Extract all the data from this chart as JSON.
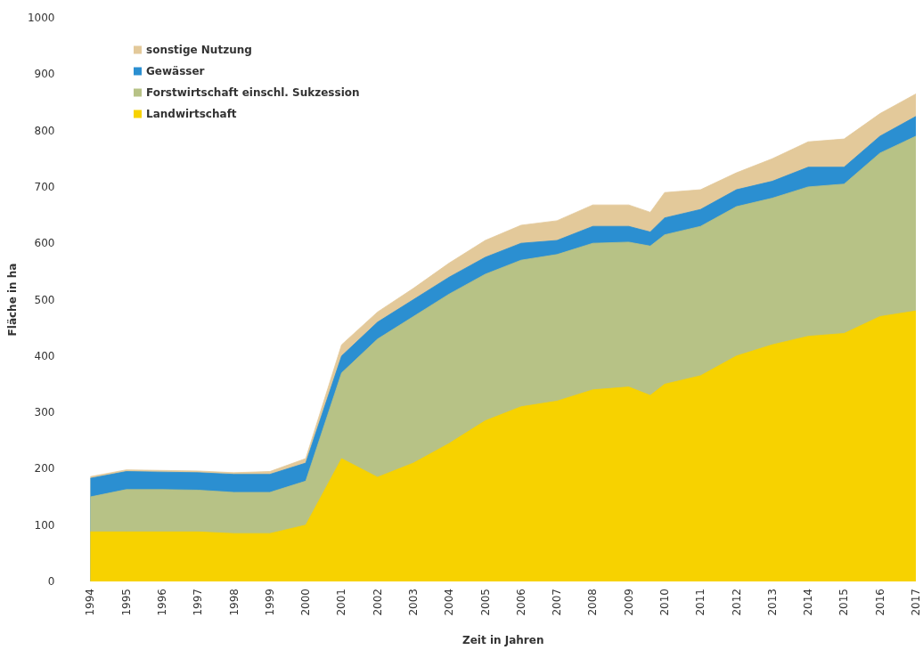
{
  "chart_data": {
    "type": "area",
    "stacked": true,
    "xlabel": "Zeit in Jahren",
    "ylabel": "Fläche in ha",
    "x": [
      1994,
      1995,
      1996,
      1997,
      1998,
      1999,
      2000,
      2001,
      2002,
      2003,
      2004,
      2005,
      2006,
      2007,
      2008,
      2009,
      2009.6,
      2010,
      2011,
      2012,
      2013,
      2014,
      2015,
      2016,
      2017
    ],
    "series": [
      {
        "name": "Landwirtschaft",
        "color": "#f7d200",
        "values": [
          88,
          88,
          88,
          88,
          85,
          85,
          100,
          218,
          185,
          210,
          245,
          285,
          310,
          320,
          340,
          345,
          330,
          350,
          365,
          400,
          420,
          435,
          440,
          470,
          480
        ]
      },
      {
        "name": "Forstwirtschaft einschl. Sukzession",
        "color": "#b7c286",
        "values": [
          62,
          75,
          75,
          74,
          73,
          73,
          78,
          152,
          245,
          260,
          265,
          260,
          260,
          260,
          260,
          257,
          265,
          265,
          265,
          265,
          260,
          265,
          265,
          290,
          310
        ]
      },
      {
        "name": "Gewässer",
        "color": "#2b8fd1",
        "values": [
          33,
          32,
          31,
          31,
          32,
          32,
          32,
          30,
          30,
          30,
          30,
          30,
          30,
          25,
          30,
          28,
          25,
          30,
          30,
          30,
          30,
          35,
          30,
          30,
          35
        ]
      },
      {
        "name": "sonstige Nutzung",
        "color": "#e3c99a",
        "values": [
          3,
          3,
          3,
          3,
          3,
          5,
          8,
          20,
          18,
          20,
          25,
          30,
          32,
          35,
          38,
          38,
          35,
          45,
          35,
          30,
          40,
          45,
          50,
          40,
          40
        ]
      }
    ],
    "xlim": [
      1994,
      2017
    ],
    "xticks": [
      1994,
      1995,
      1996,
      1997,
      1998,
      1999,
      2000,
      2001,
      2002,
      2003,
      2004,
      2005,
      2006,
      2007,
      2008,
      2009,
      2010,
      2011,
      2012,
      2013,
      2014,
      2015,
      2016,
      2017
    ],
    "ylim": [
      0,
      1000
    ],
    "yticks": [
      0,
      100,
      200,
      300,
      400,
      500,
      600,
      700,
      800,
      900,
      1000
    ],
    "grid": false,
    "legend": "top left"
  }
}
